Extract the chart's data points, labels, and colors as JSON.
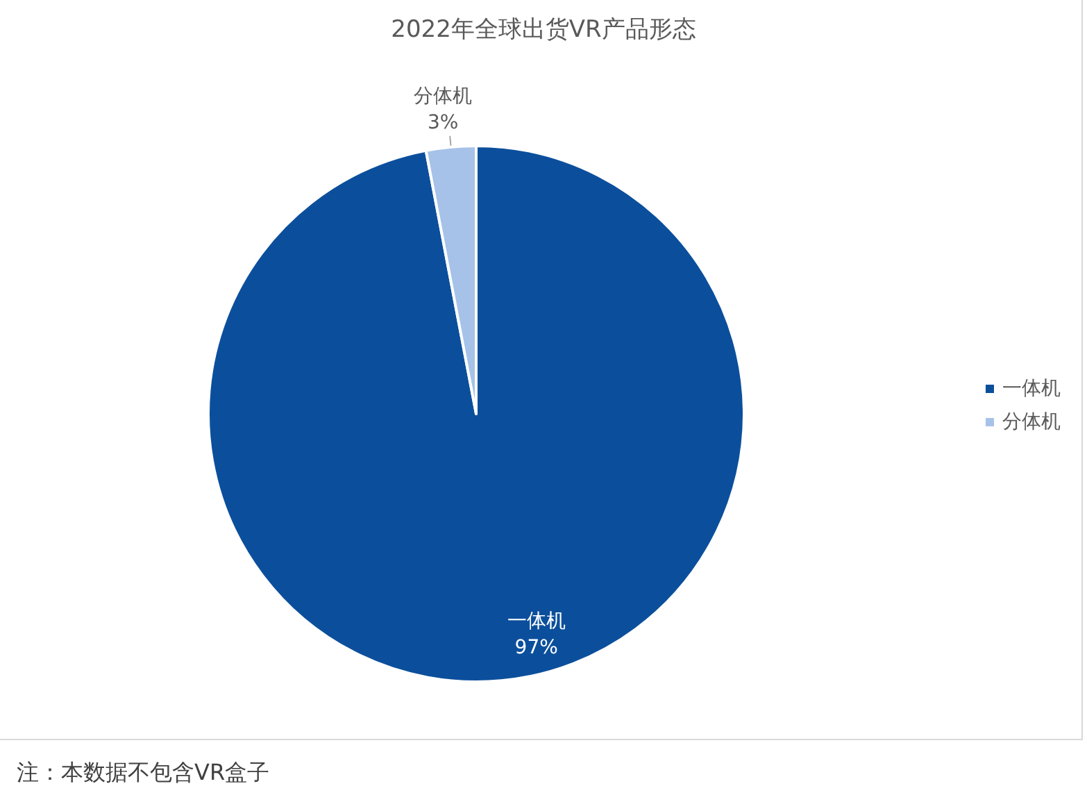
{
  "chart_data": {
    "type": "pie",
    "title": "2022年全球出货VR产品形态",
    "categories": [
      "一体机",
      "分体机"
    ],
    "values": [
      97,
      3
    ],
    "colors": [
      "#0b4f9c",
      "#a6c2e8"
    ],
    "value_labels": [
      "97%",
      "3%"
    ],
    "legend": "right",
    "annotations": [
      "注：本数据不包含VR盒子"
    ]
  }
}
